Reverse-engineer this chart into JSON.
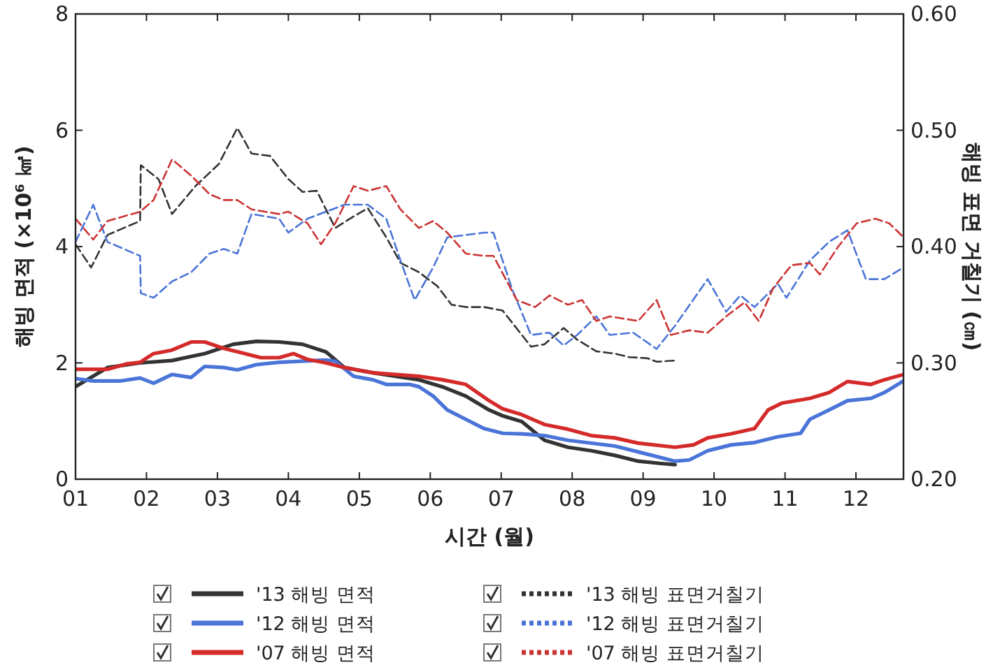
{
  "chart_data": {
    "type": "line",
    "xlabel": "시간 (월)",
    "ylabel": "해빙 면적 (×10⁶ ㎢)",
    "y2label": "해빙 표면 거칠기 (㎝)",
    "xlim": [
      1,
      12.67
    ],
    "xticks": [
      {
        "value": 1,
        "label": "01"
      },
      {
        "value": 2,
        "label": "02"
      },
      {
        "value": 3,
        "label": "03"
      },
      {
        "value": 4,
        "label": "04"
      },
      {
        "value": 5,
        "label": "05"
      },
      {
        "value": 6,
        "label": "06"
      },
      {
        "value": 7,
        "label": "07"
      },
      {
        "value": 8,
        "label": "08"
      },
      {
        "value": 9,
        "label": "09"
      },
      {
        "value": 10,
        "label": "10"
      },
      {
        "value": 11,
        "label": "11"
      },
      {
        "value": 12,
        "label": "12"
      }
    ],
    "ylim": [
      0,
      8
    ],
    "yticks": [
      0,
      2,
      4,
      6,
      8
    ],
    "y2lim": [
      0.2,
      0.6
    ],
    "y2ticks": [
      {
        "value": 0.2,
        "label": "0.20"
      },
      {
        "value": 0.3,
        "label": "0.30"
      },
      {
        "value": 0.4,
        "label": "0.40"
      },
      {
        "value": 0.5,
        "label": "0.50"
      },
      {
        "value": 0.6,
        "label": "0.60"
      }
    ],
    "legend": "bottom",
    "marker": "none",
    "series": [
      {
        "name": "'13 해빙 면적",
        "color": "#333333",
        "line_style": "solid",
        "x": [
          1,
          1.45,
          1.91,
          2.36,
          2.82,
          3.22,
          3.55,
          3.87,
          4.2,
          4.53,
          4.79,
          5.19,
          5.51,
          5.84,
          6.17,
          6.5,
          6.83,
          7.02,
          7.29,
          7.61,
          7.94,
          8.27,
          8.6,
          8.93,
          9.25,
          9.45
        ],
        "values": [
          1.59,
          1.92,
          2.0,
          2.04,
          2.16,
          2.32,
          2.37,
          2.36,
          2.32,
          2.19,
          1.92,
          1.83,
          1.77,
          1.71,
          1.59,
          1.43,
          1.19,
          1.09,
          0.99,
          0.67,
          0.55,
          0.49,
          0.41,
          0.31,
          0.27,
          0.25
        ]
      },
      {
        "name": "'12 해빙 면적",
        "color": "#4a74d8",
        "line_style": "solid",
        "x": [
          1,
          1.25,
          1.64,
          1.91,
          2.1,
          2.36,
          2.63,
          2.82,
          3.09,
          3.28,
          3.55,
          3.87,
          4.53,
          4.66,
          4.92,
          5.19,
          5.38,
          5.71,
          5.84,
          6.04,
          6.24,
          6.5,
          6.76,
          7.02,
          7.29,
          7.61,
          7.94,
          8.6,
          8.93,
          9.45,
          9.65,
          9.91,
          10.24,
          10.57,
          10.9,
          11.22,
          11.35,
          11.62,
          11.88,
          12.21,
          12.4,
          12.67
        ],
        "values": [
          1.73,
          1.69,
          1.69,
          1.74,
          1.65,
          1.8,
          1.75,
          1.94,
          1.92,
          1.88,
          1.97,
          2.01,
          2.05,
          2.03,
          1.77,
          1.71,
          1.63,
          1.63,
          1.59,
          1.43,
          1.19,
          1.03,
          0.87,
          0.79,
          0.78,
          0.75,
          0.67,
          0.57,
          0.47,
          0.31,
          0.33,
          0.49,
          0.59,
          0.63,
          0.73,
          0.79,
          1.03,
          1.19,
          1.35,
          1.39,
          1.49,
          1.69
        ]
      },
      {
        "name": "'07 해빙 면적",
        "color": "#d42a2a",
        "line_style": "solid",
        "x": [
          1,
          1.45,
          1.71,
          1.91,
          2.1,
          2.36,
          2.63,
          2.82,
          3.09,
          3.35,
          3.61,
          3.87,
          4.07,
          4.27,
          4.53,
          4.79,
          5.19,
          5.51,
          5.84,
          6.17,
          6.5,
          6.83,
          7.02,
          7.29,
          7.61,
          7.94,
          8.27,
          8.6,
          8.93,
          9.45,
          9.71,
          9.91,
          10.24,
          10.57,
          10.76,
          10.96,
          11.35,
          11.62,
          11.88,
          12.21,
          12.4,
          12.67
        ],
        "values": [
          1.89,
          1.89,
          1.98,
          2.01,
          2.16,
          2.22,
          2.36,
          2.36,
          2.25,
          2.17,
          2.09,
          2.09,
          2.16,
          2.06,
          2.0,
          1.92,
          1.83,
          1.8,
          1.77,
          1.71,
          1.63,
          1.35,
          1.21,
          1.11,
          0.94,
          0.86,
          0.75,
          0.71,
          0.62,
          0.55,
          0.59,
          0.71,
          0.78,
          0.87,
          1.19,
          1.31,
          1.39,
          1.49,
          1.68,
          1.63,
          1.71,
          1.8
        ]
      },
      {
        "name": "'13 해빙 표면거칠기",
        "color": "#333333",
        "line_style": "dashed",
        "axis": "y2",
        "x": [
          1,
          1.22,
          1.45,
          1.91,
          1.92,
          2.17,
          2.36,
          2.69,
          3.02,
          3.28,
          3.48,
          3.74,
          4.0,
          4.2,
          4.4,
          4.66,
          4.92,
          5.12,
          5.38,
          5.58,
          5.84,
          6.1,
          6.3,
          6.5,
          6.76,
          7.02,
          7.42,
          7.61,
          7.88,
          8.07,
          8.34,
          8.6,
          8.8,
          9.06,
          9.19,
          9.45
        ],
        "values": [
          0.402,
          0.382,
          0.41,
          0.422,
          0.47,
          0.458,
          0.428,
          0.452,
          0.471,
          0.502,
          0.48,
          0.478,
          0.458,
          0.447,
          0.448,
          0.416,
          0.426,
          0.433,
          0.408,
          0.386,
          0.378,
          0.366,
          0.35,
          0.348,
          0.348,
          0.345,
          0.314,
          0.316,
          0.33,
          0.32,
          0.31,
          0.308,
          0.305,
          0.304,
          0.301,
          0.302
        ]
      },
      {
        "name": "'12 해빙 표면거칠기",
        "color": "#4a74d8",
        "line_style": "dashed",
        "axis": "y2",
        "x": [
          1,
          1.25,
          1.45,
          1.91,
          1.92,
          2.1,
          2.36,
          2.63,
          2.89,
          3.09,
          3.28,
          3.48,
          3.87,
          4.0,
          4.27,
          4.53,
          4.79,
          5.12,
          5.38,
          5.58,
          5.78,
          6.04,
          6.24,
          6.5,
          6.76,
          6.89,
          7.15,
          7.42,
          7.68,
          7.88,
          8.07,
          8.34,
          8.53,
          8.86,
          9.19,
          9.45,
          9.91,
          10.17,
          10.37,
          10.57,
          10.9,
          11.02,
          11.35,
          11.62,
          11.88,
          12.14,
          12.4,
          12.67
        ],
        "values": [
          0.404,
          0.436,
          0.404,
          0.392,
          0.36,
          0.356,
          0.37,
          0.378,
          0.394,
          0.398,
          0.394,
          0.428,
          0.424,
          0.412,
          0.424,
          0.43,
          0.436,
          0.436,
          0.424,
          0.388,
          0.354,
          0.382,
          0.408,
          0.41,
          0.412,
          0.412,
          0.364,
          0.324,
          0.326,
          0.315,
          0.324,
          0.34,
          0.324,
          0.326,
          0.312,
          0.332,
          0.372,
          0.344,
          0.358,
          0.348,
          0.368,
          0.356,
          0.388,
          0.404,
          0.414,
          0.372,
          0.372,
          0.382
        ]
      },
      {
        "name": "'07 해빙 표면거칠기",
        "color": "#cc3333",
        "line_style": "dashed",
        "axis": "y2",
        "x": [
          1,
          1.25,
          1.45,
          1.91,
          2.1,
          2.36,
          2.63,
          2.89,
          3.09,
          3.28,
          3.48,
          3.87,
          4.0,
          4.27,
          4.46,
          4.66,
          4.92,
          5.12,
          5.38,
          5.58,
          5.84,
          6.04,
          6.24,
          6.5,
          6.76,
          6.89,
          7.22,
          7.48,
          7.68,
          7.94,
          8.14,
          8.34,
          8.53,
          8.93,
          9.19,
          9.39,
          9.65,
          9.91,
          10.17,
          10.43,
          10.63,
          10.83,
          11.09,
          11.35,
          11.49,
          11.75,
          12.01,
          12.27,
          12.47,
          12.67
        ],
        "values": [
          0.424,
          0.406,
          0.422,
          0.43,
          0.44,
          0.475,
          0.461,
          0.445,
          0.44,
          0.44,
          0.432,
          0.428,
          0.43,
          0.42,
          0.402,
          0.42,
          0.452,
          0.448,
          0.452,
          0.432,
          0.416,
          0.422,
          0.412,
          0.394,
          0.392,
          0.392,
          0.354,
          0.348,
          0.358,
          0.35,
          0.354,
          0.336,
          0.34,
          0.336,
          0.354,
          0.324,
          0.328,
          0.326,
          0.34,
          0.352,
          0.336,
          0.364,
          0.384,
          0.386,
          0.376,
          0.4,
          0.42,
          0.424,
          0.42,
          0.408
        ]
      }
    ]
  }
}
